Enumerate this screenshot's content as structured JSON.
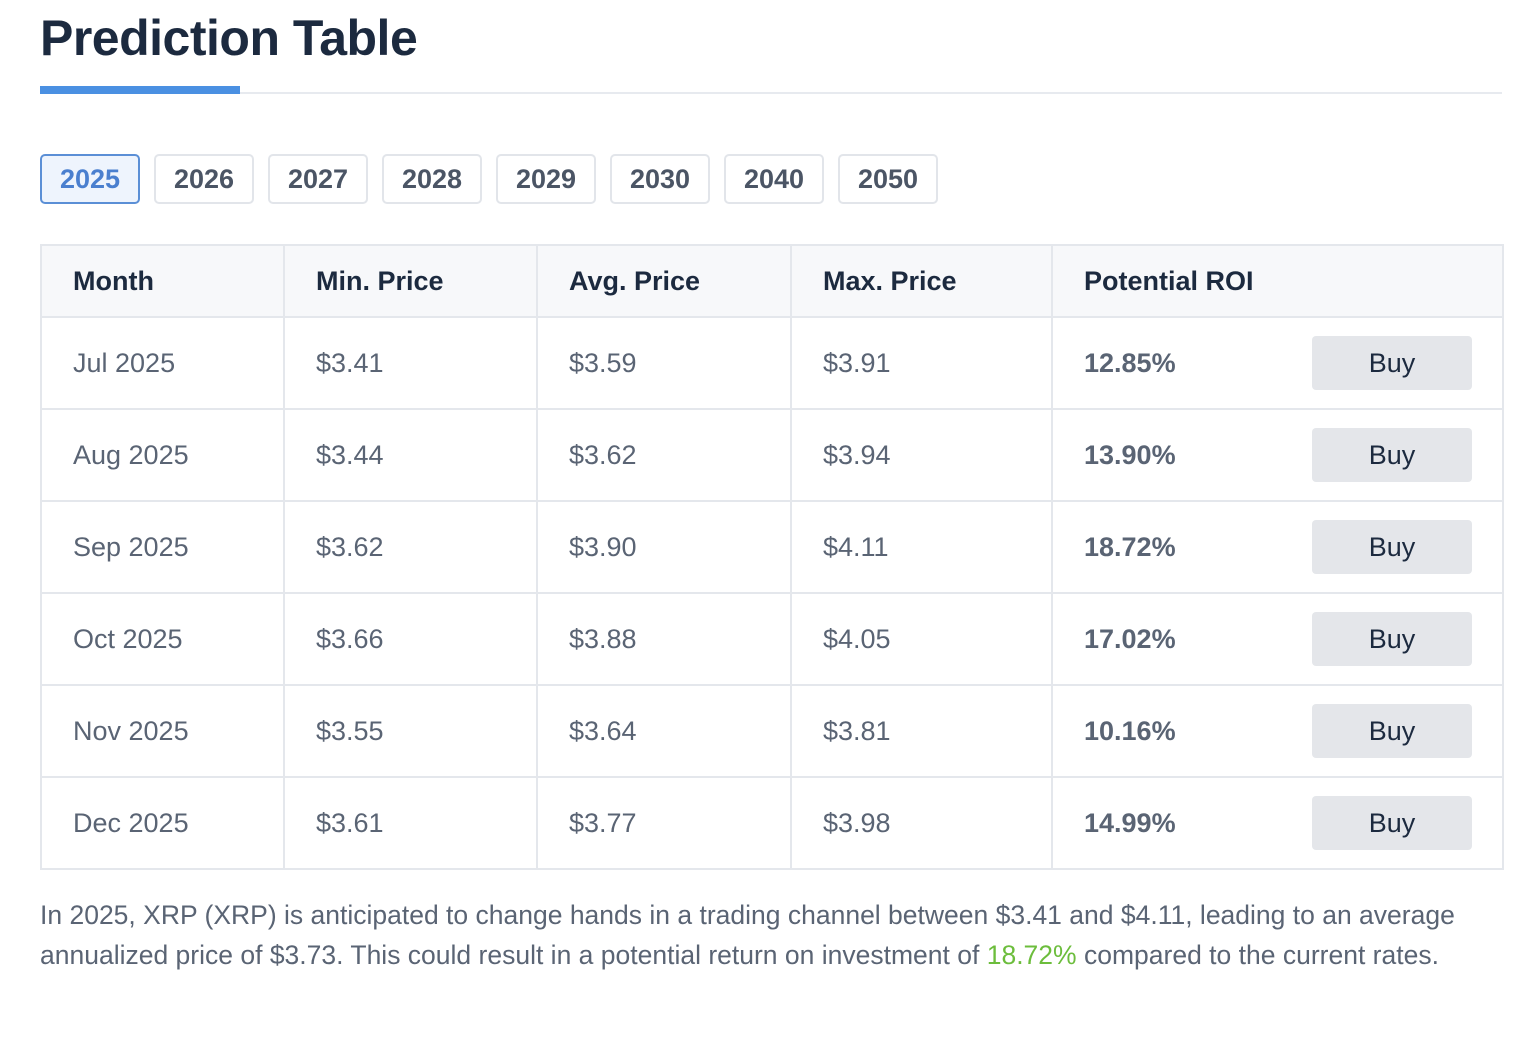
{
  "title": "Prediction Table",
  "colors": {
    "accent": "#4a90e2",
    "roi_green": "#6cbd3c",
    "active_tab_text": "#4a7fcf"
  },
  "tabs": [
    {
      "label": "2025",
      "active": true
    },
    {
      "label": "2026",
      "active": false
    },
    {
      "label": "2027",
      "active": false
    },
    {
      "label": "2028",
      "active": false
    },
    {
      "label": "2029",
      "active": false
    },
    {
      "label": "2030",
      "active": false
    },
    {
      "label": "2040",
      "active": false
    },
    {
      "label": "2050",
      "active": false
    }
  ],
  "table": {
    "headers": {
      "month": "Month",
      "min": "Min. Price",
      "avg": "Avg. Price",
      "max": "Max. Price",
      "roi": "Potential ROI"
    },
    "buy_label": "Buy",
    "rows": [
      {
        "month": "Jul 2025",
        "min": "$3.41",
        "avg": "$3.59",
        "max": "$3.91",
        "roi": "12.85%"
      },
      {
        "month": "Aug 2025",
        "min": "$3.44",
        "avg": "$3.62",
        "max": "$3.94",
        "roi": "13.90%"
      },
      {
        "month": "Sep 2025",
        "min": "$3.62",
        "avg": "$3.90",
        "max": "$4.11",
        "roi": "18.72%"
      },
      {
        "month": "Oct 2025",
        "min": "$3.66",
        "avg": "$3.88",
        "max": "$4.05",
        "roi": "17.02%"
      },
      {
        "month": "Nov 2025",
        "min": "$3.55",
        "avg": "$3.64",
        "max": "$3.81",
        "roi": "10.16%"
      },
      {
        "month": "Dec 2025",
        "min": "$3.61",
        "avg": "$3.77",
        "max": "$3.98",
        "roi": "14.99%"
      }
    ]
  },
  "summary": {
    "part1": "In 2025, XRP (XRP) is anticipated to change hands in a trading channel between $3.41 and $4.11, leading to an average annualized price of $3.73. This could result in a potential return on investment of ",
    "roi": "18.72%",
    "part2": " compared to the current rates."
  }
}
